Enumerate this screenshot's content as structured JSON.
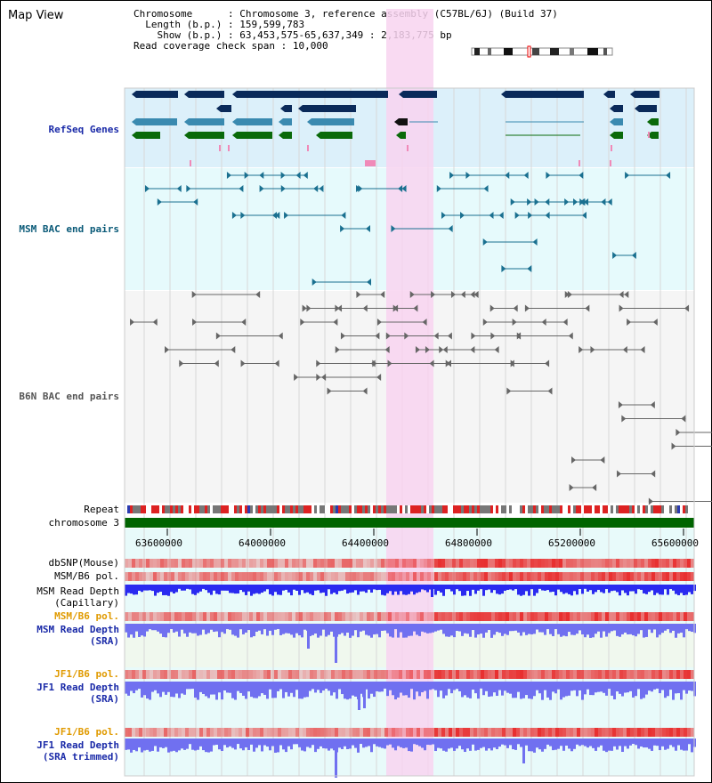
{
  "page": {
    "title": "Map View"
  },
  "info": {
    "chromosome_key": "Chromosome",
    "chromosome_val": "Chromosome 3, reference assembly (C57BL/6J) (Build 37)",
    "length_key": "Length (b.p.)",
    "length_val": "159,599,783",
    "show_key": "Show (b.p.)",
    "show_val": "63,453,575-65,637,349 : 2,183,775 bp",
    "coverage_key": "Read coverage check span",
    "coverage_val": "10,000"
  },
  "tracks": {
    "refseq": "RefSeq Genes",
    "msm_bac": "MSM BAC end pairs",
    "b6n_bac": "B6N BAC end pairs",
    "repeat": "Repeat",
    "chromosome": "chromosome 3",
    "dbsnp": "dbSNP(Mouse)",
    "msm_b6_pol_1": "MSM/B6 pol.",
    "msm_read_depth_cap_1": "MSM Read Depth",
    "msm_read_depth_cap_2": "(Capillary)",
    "msm_b6_pol_2": "MSM/B6 pol.",
    "msm_read_depth_sra_1": "MSM Read Depth",
    "msm_read_depth_sra_2": "(SRA)",
    "jf1_b6_pol_1": "JF1/B6 pol.",
    "jf1_read_depth_sra_1": "JF1 Read Depth",
    "jf1_read_depth_sra_2": "(SRA)",
    "jf1_b6_pol_2": "JF1/B6 pol.",
    "jf1_read_depth_trim_1": "JF1 Read Depth",
    "jf1_read_depth_trim_2": "(SRA trimmed)"
  },
  "axis": {
    "ticks": [
      "63600000",
      "64000000",
      "64400000",
      "64800000",
      "65200000",
      "65600000"
    ]
  },
  "colors": {
    "highlight": "#f8d4f0",
    "refseq_bg": "#dcf0fa",
    "msm_bac_bg": "#e6fafc",
    "b6n_bac_bg": "#f5f5f5",
    "gene_dark": "#0a2a5a",
    "gene_mid": "#3a8ab0",
    "gene_green": "#0a6a0a",
    "chromosome_bar": "#006400",
    "depth_blue": "#2a2af0",
    "depth_light": "#7070f0",
    "pol_red": "#e83030"
  }
}
